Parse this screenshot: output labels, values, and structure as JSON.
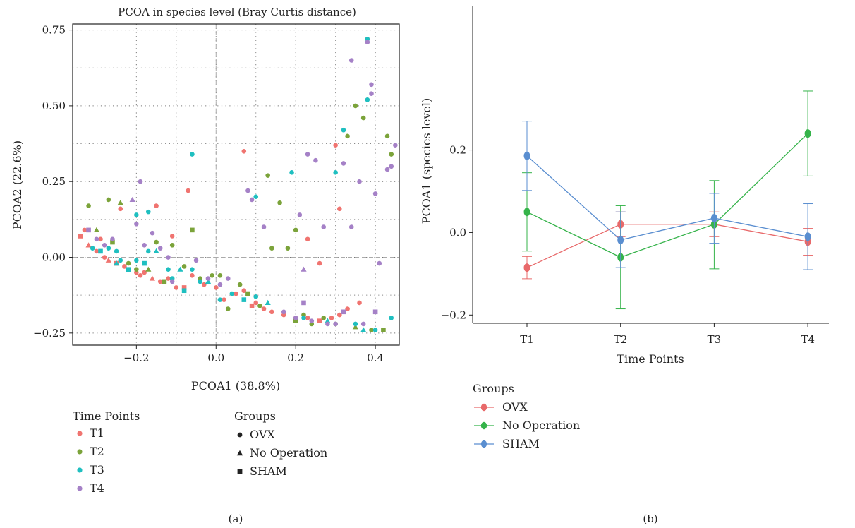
{
  "chart_data": [
    {
      "panel_label": "(a)",
      "type": "scatter",
      "title": "PCOA in species level (Bray Curtis distance)",
      "xlabel": "PCOA1 (38.8%)",
      "ylabel": "PCOA2 (22.6%)",
      "xlim": [
        -0.36,
        0.46
      ],
      "ylim": [
        -0.29,
        0.77
      ],
      "xticks": [
        -0.2,
        0.0,
        0.2,
        0.4
      ],
      "xtick_labels": [
        "−0.2",
        "0.0",
        "0.2",
        "0.4"
      ],
      "yticks": [
        -0.25,
        0.0,
        0.25,
        0.5,
        0.75
      ],
      "ytick_labels": [
        "−0.25",
        "0.00",
        "0.25",
        "0.50",
        "0.75"
      ],
      "grid": true,
      "reference_lines": {
        "x": 0,
        "y": 0
      },
      "color_legend": {
        "title": "Time Points",
        "items": [
          {
            "label": "T1",
            "color": "#F07470"
          },
          {
            "label": "T2",
            "color": "#7BA33A"
          },
          {
            "label": "T3",
            "color": "#1FBFC0"
          },
          {
            "label": "T4",
            "color": "#A581C7"
          }
        ]
      },
      "shape_legend": {
        "title": "Groups",
        "items": [
          {
            "label": "OVX",
            "shape": "circle"
          },
          {
            "label": "No Operation",
            "shape": "triangle"
          },
          {
            "label": "SHAM",
            "shape": "square"
          }
        ]
      },
      "points": [
        [
          -0.34,
          0.07,
          "T1",
          "square"
        ],
        [
          -0.33,
          0.09,
          "T1",
          "circle"
        ],
        [
          -0.32,
          0.04,
          "T1",
          "triangle"
        ],
        [
          -0.3,
          0.02,
          "T1",
          "circle"
        ],
        [
          -0.29,
          0.06,
          "T1",
          "circle"
        ],
        [
          -0.28,
          0.0,
          "T1",
          "circle"
        ],
        [
          -0.27,
          -0.01,
          "T1",
          "triangle"
        ],
        [
          -0.25,
          -0.02,
          "T1",
          "square"
        ],
        [
          -0.23,
          -0.03,
          "T1",
          "circle"
        ],
        [
          -0.22,
          -0.04,
          "T1",
          "circle"
        ],
        [
          -0.2,
          -0.05,
          "T1",
          "circle"
        ],
        [
          -0.19,
          -0.06,
          "T1",
          "circle"
        ],
        [
          -0.18,
          -0.05,
          "T1",
          "circle"
        ],
        [
          -0.16,
          -0.07,
          "T1",
          "triangle"
        ],
        [
          -0.14,
          -0.08,
          "T1",
          "circle"
        ],
        [
          -0.12,
          -0.07,
          "T1",
          "circle"
        ],
        [
          -0.1,
          -0.1,
          "T1",
          "circle"
        ],
        [
          -0.08,
          -0.1,
          "T1",
          "square"
        ],
        [
          -0.06,
          -0.06,
          "T1",
          "circle"
        ],
        [
          -0.03,
          -0.09,
          "T1",
          "circle"
        ],
        [
          0.0,
          -0.1,
          "T1",
          "circle"
        ],
        [
          0.02,
          -0.14,
          "T1",
          "circle"
        ],
        [
          0.05,
          -0.12,
          "T1",
          "circle"
        ],
        [
          0.07,
          -0.11,
          "T1",
          "circle"
        ],
        [
          0.09,
          -0.16,
          "T1",
          "square"
        ],
        [
          0.1,
          -0.15,
          "T1",
          "circle"
        ],
        [
          0.12,
          -0.17,
          "T1",
          "circle"
        ],
        [
          0.14,
          -0.18,
          "T1",
          "circle"
        ],
        [
          0.17,
          -0.19,
          "T1",
          "circle"
        ],
        [
          0.2,
          -0.2,
          "T1",
          "circle"
        ],
        [
          0.23,
          -0.2,
          "T1",
          "circle"
        ],
        [
          0.26,
          -0.21,
          "T1",
          "square"
        ],
        [
          0.29,
          -0.2,
          "T1",
          "circle"
        ],
        [
          0.31,
          -0.19,
          "T1",
          "circle"
        ],
        [
          0.33,
          -0.17,
          "T1",
          "circle"
        ],
        [
          0.36,
          -0.15,
          "T1",
          "circle"
        ],
        [
          -0.24,
          0.16,
          "T1",
          "circle"
        ],
        [
          -0.15,
          0.17,
          "T1",
          "circle"
        ],
        [
          -0.07,
          0.22,
          "T1",
          "circle"
        ],
        [
          -0.11,
          0.07,
          "T1",
          "circle"
        ],
        [
          0.07,
          0.35,
          "T1",
          "circle"
        ],
        [
          0.3,
          0.37,
          "T1",
          "circle"
        ],
        [
          0.31,
          0.16,
          "T1",
          "circle"
        ],
        [
          0.23,
          0.06,
          "T1",
          "circle"
        ],
        [
          0.26,
          -0.02,
          "T1",
          "circle"
        ],
        [
          0.38,
          0.72,
          "T1",
          "circle"
        ],
        [
          -0.32,
          0.17,
          "T2",
          "circle"
        ],
        [
          -0.27,
          0.19,
          "T2",
          "circle"
        ],
        [
          -0.3,
          0.09,
          "T2",
          "triangle"
        ],
        [
          -0.24,
          0.18,
          "T2",
          "triangle"
        ],
        [
          -0.26,
          0.05,
          "T2",
          "square"
        ],
        [
          -0.22,
          -0.02,
          "T2",
          "circle"
        ],
        [
          -0.2,
          -0.04,
          "T2",
          "circle"
        ],
        [
          -0.17,
          -0.04,
          "T2",
          "triangle"
        ],
        [
          -0.15,
          0.05,
          "T2",
          "circle"
        ],
        [
          -0.13,
          -0.08,
          "T2",
          "square"
        ],
        [
          -0.11,
          0.04,
          "T2",
          "circle"
        ],
        [
          -0.08,
          -0.03,
          "T2",
          "circle"
        ],
        [
          -0.06,
          0.09,
          "T2",
          "square"
        ],
        [
          -0.04,
          -0.07,
          "T2",
          "circle"
        ],
        [
          -0.01,
          -0.06,
          "T2",
          "circle"
        ],
        [
          0.01,
          -0.06,
          "T2",
          "circle"
        ],
        [
          0.03,
          -0.17,
          "T2",
          "circle"
        ],
        [
          0.06,
          -0.09,
          "T2",
          "circle"
        ],
        [
          0.08,
          -0.12,
          "T2",
          "square"
        ],
        [
          0.11,
          -0.16,
          "T2",
          "circle"
        ],
        [
          0.13,
          0.27,
          "T2",
          "circle"
        ],
        [
          0.16,
          0.18,
          "T2",
          "circle"
        ],
        [
          0.18,
          0.03,
          "T2",
          "circle"
        ],
        [
          0.2,
          0.09,
          "T2",
          "circle"
        ],
        [
          0.22,
          -0.19,
          "T2",
          "circle"
        ],
        [
          0.2,
          -0.21,
          "T2",
          "square"
        ],
        [
          0.24,
          -0.22,
          "T2",
          "circle"
        ],
        [
          0.27,
          -0.2,
          "T2",
          "circle"
        ],
        [
          0.3,
          -0.22,
          "T2",
          "circle"
        ],
        [
          0.33,
          0.4,
          "T2",
          "circle"
        ],
        [
          0.35,
          0.5,
          "T2",
          "circle"
        ],
        [
          0.37,
          0.46,
          "T2",
          "circle"
        ],
        [
          0.39,
          -0.24,
          "T2",
          "circle"
        ],
        [
          0.42,
          -0.24,
          "T2",
          "square"
        ],
        [
          0.43,
          0.4,
          "T2",
          "circle"
        ],
        [
          0.44,
          0.34,
          "T2",
          "circle"
        ],
        [
          0.35,
          -0.23,
          "T2",
          "triangle"
        ],
        [
          0.14,
          0.03,
          "T2",
          "circle"
        ],
        [
          -0.31,
          0.03,
          "T3",
          "circle"
        ],
        [
          -0.29,
          0.02,
          "T3",
          "square"
        ],
        [
          -0.27,
          0.03,
          "T3",
          "circle"
        ],
        [
          -0.25,
          -0.02,
          "T3",
          "triangle"
        ],
        [
          -0.24,
          -0.01,
          "T3",
          "circle"
        ],
        [
          -0.22,
          -0.04,
          "T3",
          "square"
        ],
        [
          -0.2,
          -0.01,
          "T3",
          "circle"
        ],
        [
          -0.18,
          -0.02,
          "T3",
          "square"
        ],
        [
          -0.17,
          0.02,
          "T3",
          "circle"
        ],
        [
          -0.15,
          0.02,
          "T3",
          "triangle"
        ],
        [
          -0.12,
          -0.04,
          "T3",
          "circle"
        ],
        [
          -0.11,
          -0.07,
          "T3",
          "circle"
        ],
        [
          -0.09,
          -0.04,
          "T3",
          "triangle"
        ],
        [
          -0.08,
          -0.11,
          "T3",
          "square"
        ],
        [
          -0.06,
          -0.04,
          "T3",
          "circle"
        ],
        [
          -0.04,
          -0.08,
          "T3",
          "circle"
        ],
        [
          -0.02,
          -0.08,
          "T3",
          "triangle"
        ],
        [
          0.01,
          -0.14,
          "T3",
          "circle"
        ],
        [
          0.04,
          -0.12,
          "T3",
          "circle"
        ],
        [
          0.07,
          -0.14,
          "T3",
          "square"
        ],
        [
          0.1,
          -0.13,
          "T3",
          "circle"
        ],
        [
          0.13,
          -0.15,
          "T3",
          "triangle"
        ],
        [
          -0.17,
          0.15,
          "T3",
          "circle"
        ],
        [
          -0.2,
          0.14,
          "T3",
          "circle"
        ],
        [
          -0.06,
          0.34,
          "T3",
          "circle"
        ],
        [
          0.1,
          0.2,
          "T3",
          "circle"
        ],
        [
          0.19,
          0.28,
          "T3",
          "circle"
        ],
        [
          0.3,
          0.28,
          "T3",
          "circle"
        ],
        [
          0.32,
          0.42,
          "T3",
          "circle"
        ],
        [
          0.38,
          0.52,
          "T3",
          "circle"
        ],
        [
          0.38,
          0.72,
          "T3",
          "circle"
        ],
        [
          0.22,
          -0.2,
          "T3",
          "circle"
        ],
        [
          0.28,
          -0.21,
          "T3",
          "triangle"
        ],
        [
          0.35,
          -0.22,
          "T3",
          "circle"
        ],
        [
          0.37,
          -0.24,
          "T3",
          "triangle"
        ],
        [
          0.4,
          -0.24,
          "T3",
          "circle"
        ],
        [
          0.44,
          -0.2,
          "T3",
          "circle"
        ],
        [
          -0.25,
          0.02,
          "T3",
          "circle"
        ],
        [
          -0.32,
          0.09,
          "T4",
          "square"
        ],
        [
          -0.3,
          0.06,
          "T4",
          "circle"
        ],
        [
          -0.28,
          0.04,
          "T4",
          "circle"
        ],
        [
          -0.26,
          0.06,
          "T4",
          "circle"
        ],
        [
          -0.21,
          0.19,
          "T4",
          "triangle"
        ],
        [
          -0.2,
          0.11,
          "T4",
          "circle"
        ],
        [
          -0.19,
          0.25,
          "T4",
          "circle"
        ],
        [
          -0.18,
          0.04,
          "T4",
          "circle"
        ],
        [
          -0.16,
          0.08,
          "T4",
          "circle"
        ],
        [
          -0.14,
          0.03,
          "T4",
          "circle"
        ],
        [
          -0.12,
          0.0,
          "T4",
          "circle"
        ],
        [
          -0.11,
          -0.08,
          "T4",
          "circle"
        ],
        [
          -0.05,
          -0.01,
          "T4",
          "circle"
        ],
        [
          -0.02,
          -0.07,
          "T4",
          "circle"
        ],
        [
          0.01,
          -0.09,
          "T4",
          "circle"
        ],
        [
          0.03,
          -0.07,
          "T4",
          "circle"
        ],
        [
          0.08,
          0.22,
          "T4",
          "circle"
        ],
        [
          0.09,
          0.19,
          "T4",
          "circle"
        ],
        [
          0.12,
          0.1,
          "T4",
          "circle"
        ],
        [
          0.17,
          -0.18,
          "T4",
          "circle"
        ],
        [
          0.21,
          0.14,
          "T4",
          "circle"
        ],
        [
          0.22,
          -0.04,
          "T4",
          "triangle"
        ],
        [
          0.22,
          -0.15,
          "T4",
          "square"
        ],
        [
          0.2,
          -0.2,
          "T4",
          "circle"
        ],
        [
          0.23,
          0.34,
          "T4",
          "circle"
        ],
        [
          0.32,
          -0.18,
          "T4",
          "square"
        ],
        [
          0.32,
          0.31,
          "T4",
          "circle"
        ],
        [
          0.34,
          0.1,
          "T4",
          "circle"
        ],
        [
          0.34,
          0.65,
          "T4",
          "circle"
        ],
        [
          0.36,
          0.25,
          "T4",
          "circle"
        ],
        [
          0.38,
          0.71,
          "T4",
          "circle"
        ],
        [
          0.39,
          0.54,
          "T4",
          "circle"
        ],
        [
          0.39,
          0.57,
          "T4",
          "circle"
        ],
        [
          0.4,
          0.21,
          "T4",
          "circle"
        ],
        [
          0.4,
          -0.18,
          "T4",
          "square"
        ],
        [
          0.41,
          -0.02,
          "T4",
          "circle"
        ],
        [
          0.43,
          0.29,
          "T4",
          "circle"
        ],
        [
          0.44,
          0.3,
          "T4",
          "circle"
        ],
        [
          0.45,
          0.37,
          "T4",
          "circle"
        ],
        [
          0.24,
          -0.21,
          "T4",
          "circle"
        ],
        [
          0.28,
          -0.22,
          "T4",
          "circle"
        ],
        [
          0.3,
          -0.22,
          "T4",
          "circle"
        ],
        [
          0.25,
          0.32,
          "T4",
          "circle"
        ],
        [
          0.27,
          0.1,
          "T4",
          "circle"
        ],
        [
          0.37,
          -0.22,
          "T4",
          "circle"
        ]
      ]
    },
    {
      "panel_label": "(b)",
      "type": "line",
      "xlabel": "Time Points",
      "ylabel": "PCOA1 (species level)",
      "categories": [
        "T1",
        "T2",
        "T3",
        "T4"
      ],
      "ylim": [
        -0.22,
        0.55
      ],
      "yticks": [
        -0.2,
        0.0,
        0.2
      ],
      "ytick_labels": [
        "−0.2",
        "0.0",
        "0.2"
      ],
      "legend_title": "Groups",
      "series": [
        {
          "name": "OVX",
          "color": "#E8696A",
          "values": [
            -0.085,
            0.02,
            0.02,
            -0.022
          ],
          "err_low": [
            -0.112,
            -0.01,
            -0.01,
            -0.055
          ],
          "err_high": [
            -0.058,
            0.05,
            0.05,
            0.01
          ]
        },
        {
          "name": "No Operation",
          "color": "#35B34A",
          "values": [
            0.05,
            -0.06,
            0.02,
            0.24
          ],
          "err_low": [
            -0.045,
            -0.185,
            -0.088,
            0.137
          ],
          "err_high": [
            0.145,
            0.065,
            0.126,
            0.343
          ]
        },
        {
          "name": "SHAM",
          "color": "#5A8ED0",
          "values": [
            0.186,
            -0.018,
            0.035,
            -0.01
          ],
          "err_low": [
            0.102,
            -0.085,
            -0.026,
            -0.09
          ],
          "err_high": [
            0.27,
            0.05,
            0.095,
            0.07
          ]
        }
      ]
    }
  ]
}
